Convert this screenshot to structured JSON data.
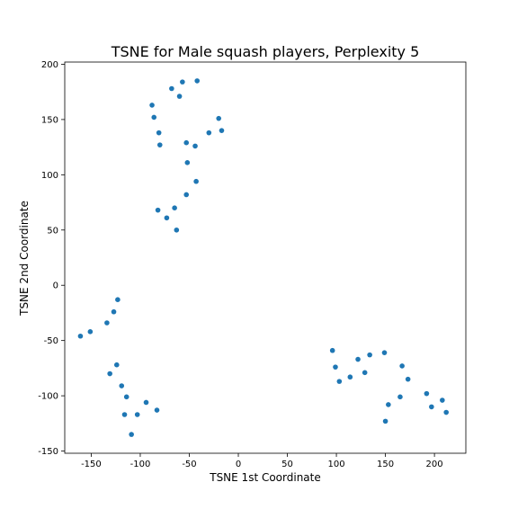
{
  "chart_data": {
    "type": "scatter",
    "title": "TSNE for Male squash players, Perplexity 5",
    "xlabel": "TSNE 1st Coordinate",
    "ylabel": "TSNE 2nd Coordinate",
    "xlim": [
      -177,
      232
    ],
    "ylim": [
      -152,
      202
    ],
    "xticks": [
      -150,
      -100,
      -50,
      0,
      50,
      100,
      150,
      200
    ],
    "yticks": [
      -150,
      -100,
      -50,
      0,
      50,
      100,
      150,
      200
    ],
    "grid": false,
    "color": "#1f77b4",
    "series": [
      {
        "x": [
          -42,
          -57,
          -68,
          -60,
          -88,
          -86,
          -81,
          -80,
          -53,
          -44,
          -20,
          -17,
          -30,
          -52,
          -43,
          -53,
          -82,
          -73,
          -65,
          -63,
          -123,
          -127,
          -134,
          -151,
          -161,
          -124,
          -131,
          -119,
          -114,
          -116,
          -103,
          -94,
          -83,
          -109,
          96,
          99,
          103,
          114,
          122,
          129,
          134,
          149,
          167,
          173,
          153,
          150,
          165,
          192,
          197,
          208,
          212
        ],
        "y": [
          185,
          184,
          178,
          171,
          163,
          152,
          138,
          127,
          129,
          126,
          151,
          140,
          138,
          111,
          94,
          82,
          68,
          61,
          70,
          50,
          -13,
          -24,
          -34,
          -42,
          -46,
          -72,
          -80,
          -91,
          -101,
          -117,
          -117,
          -106,
          -113,
          -135,
          -59,
          -74,
          -87,
          -83,
          -67,
          -79,
          -63,
          -61,
          -73,
          -85,
          -108,
          -123,
          -101,
          -98,
          -110,
          -104,
          -115
        ]
      }
    ]
  }
}
